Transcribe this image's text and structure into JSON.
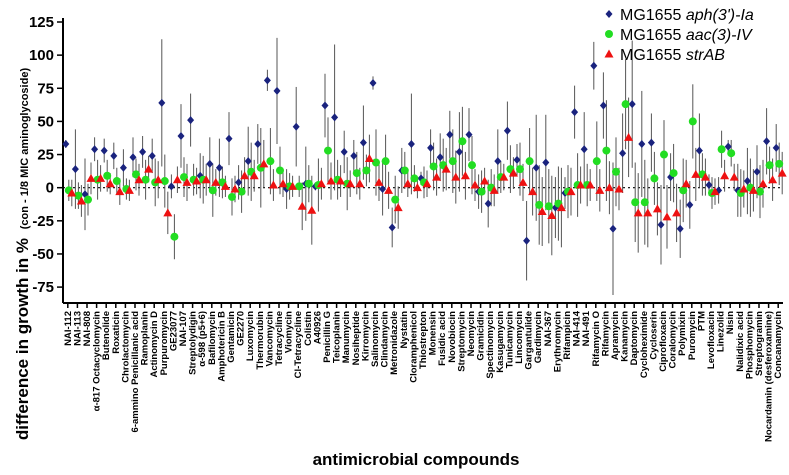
{
  "chart_data": {
    "type": "scatter",
    "xlabel": "antimicrobial compounds",
    "ylabel": "difference in growth in %",
    "ylabel_sub": "(con - 1/8 MIC aminoglycoside)",
    "ylim": [
      -87,
      125
    ],
    "yticks": [
      125,
      100,
      75,
      50,
      25,
      0,
      -25,
      -50,
      -75
    ],
    "zero_line": "dotted",
    "legend_position": "top-right",
    "categories": [
      "NAI-112",
      "NAI-113",
      "NAI-808",
      "α-817 Octacyclomycin",
      "Butenolide",
      "Roxaticin",
      "Chrolactomycin",
      "6-ammino Penicillanic acid",
      "Ramoplanin",
      "Actinomycin D",
      "Purpuromycin",
      "GE23077",
      "NAI-107",
      "Streptolydigin",
      "α-598 (p5+6)",
      "Bafilomycin",
      "Amphotericin B",
      "Gentamicin",
      "GE2270",
      "Luxomycin",
      "Thermorubin",
      "Vancomycin",
      "Tetracycline",
      "Viomycin",
      "Cl-Tetracycline",
      "Colistin",
      "A40926",
      "Penicillin G",
      "Teicoplanin",
      "Manumycin",
      "Nosiheptide",
      "Kirromycin",
      "Salinomycin",
      "Clindamycin",
      "Metronidazole",
      "Nystatin",
      "Cloramphenicol",
      "Thiostrepton",
      "Monensin",
      "Fusidic acid",
      "Novobiocin",
      "Streptomycin",
      "Neomycin",
      "Gramicidin",
      "Spectinomycin",
      "Kasugamycin",
      "Tunicamycin",
      "Lincomycin",
      "Gargantulide",
      "Gardimycin",
      "NAI-367",
      "Erythromycin",
      "Rifampicin",
      "NAI-414",
      "NAI-491",
      "Rifamycin O",
      "Rifamycin",
      "Apramycin",
      "Kanamycin",
      "Daptomycin",
      "Cycloheximide",
      "Cycloserin",
      "Ciprofloxacin",
      "Coralomycin",
      "Polymixin",
      "Puromycin",
      "PTM",
      "Levofloxacin",
      "Linezolid",
      "Nisin",
      "Nalidixic acid",
      "Phosphomycin",
      "Streptogramin",
      "Nocardamin (desferoxamine)",
      "Concanamycin"
    ],
    "series": [
      {
        "name": "MG1655 aph(3')-Ia",
        "label_prefix": "MG1655 ",
        "label_italic": "aph(3')-Ia",
        "color": "#1a237e",
        "marker": "diamond",
        "values": [
          33,
          14,
          -5,
          29,
          28,
          24,
          15,
          23,
          27,
          24,
          64,
          1,
          39,
          51,
          9,
          18,
          15,
          37,
          4,
          20,
          33,
          81,
          73,
          -1,
          46,
          3,
          1,
          62,
          53,
          27,
          24,
          34,
          79,
          -1,
          -30,
          13,
          33,
          7,
          30,
          23,
          40,
          27,
          40,
          -3,
          -12,
          20,
          43,
          21,
          -40,
          15,
          19,
          -15,
          -4,
          57,
          29,
          92,
          62,
          -31,
          26,
          63,
          33,
          34,
          -28,
          8,
          -31,
          -13,
          28,
          2,
          -2,
          31,
          -2,
          5,
          12,
          35,
          30
        ],
        "errors": [
          3,
          30,
          27,
          9,
          9,
          10,
          14,
          15,
          12,
          13,
          48,
          9,
          24,
          20,
          17,
          20,
          22,
          20,
          13,
          26,
          15,
          8,
          40,
          15,
          30,
          28,
          3,
          24,
          55,
          16,
          12,
          28,
          5,
          20,
          15,
          17,
          38,
          5,
          14,
          18,
          18,
          30,
          20,
          13,
          18,
          24,
          22,
          12,
          30,
          40,
          36,
          23,
          12,
          20,
          28,
          18,
          25,
          50,
          30,
          48,
          40,
          22,
          30,
          18,
          22,
          18,
          28,
          8,
          10,
          5,
          20,
          25,
          20,
          25,
          18
        ]
      },
      {
        "name": "MG1655 aac(3)-IV",
        "label_prefix": "MG1655 ",
        "label_italic": "aac(3)-IV",
        "color": "#22dd22",
        "marker": "circle",
        "values": [
          -2,
          -6,
          -9,
          6,
          9,
          5,
          -1,
          10,
          6,
          4,
          5,
          -37,
          8,
          6,
          6,
          -2,
          4,
          -7,
          -3,
          12,
          15,
          20,
          13,
          1,
          1,
          3,
          2,
          28,
          6,
          3,
          11,
          13,
          19,
          20,
          -9,
          13,
          7,
          4,
          16,
          17,
          20,
          35,
          17,
          -3,
          0,
          8,
          14,
          14,
          20,
          -13,
          -14,
          -12,
          -3,
          2,
          2,
          20,
          28,
          12,
          63,
          -11,
          -11,
          7,
          25,
          11,
          -2,
          50,
          10,
          -4,
          29,
          26,
          -4,
          0,
          -3,
          17,
          18
        ],
        "errors": [
          8,
          10,
          12,
          15,
          12,
          10,
          8,
          12,
          15,
          18,
          20,
          17,
          15,
          12,
          18,
          20,
          12,
          14,
          16,
          22,
          30,
          25,
          18,
          10,
          8,
          14,
          20,
          25,
          15,
          20,
          16,
          12,
          25,
          20,
          18,
          14,
          10,
          12,
          18,
          20,
          24,
          26,
          22,
          16,
          14,
          12,
          18,
          20,
          25,
          30,
          28,
          28,
          20,
          24,
          16,
          30,
          38,
          26,
          34,
          30,
          32,
          20,
          26,
          22,
          24,
          28,
          16,
          12,
          14,
          10,
          18,
          22,
          20,
          14,
          16
        ]
      },
      {
        "name": "MG1655 strAB",
        "label_prefix": "MG1655 ",
        "label_italic": "strAB",
        "color": "#ee1111",
        "marker": "triangle",
        "values": [
          -4,
          -10,
          7,
          7,
          3,
          -3,
          -2,
          6,
          14,
          6,
          -19,
          6,
          4,
          5,
          6,
          4,
          1,
          -1,
          9,
          9,
          18,
          2,
          3,
          1,
          -14,
          -17,
          3,
          5,
          5,
          3,
          3,
          22,
          4,
          -2,
          -15,
          3,
          0,
          3,
          8,
          14,
          8,
          9,
          2,
          5,
          -2,
          8,
          11,
          4,
          -3,
          -18,
          -21,
          -15,
          -3,
          2,
          2,
          -2,
          0,
          -1,
          38,
          -19,
          -19,
          -16,
          -22,
          -19,
          3,
          10,
          8,
          -3,
          9,
          8,
          -1,
          -2,
          3,
          6,
          11
        ],
        "errors": [
          10,
          12,
          12,
          10,
          8,
          10,
          8,
          12,
          10,
          14,
          16,
          10,
          14,
          10,
          12,
          10,
          8,
          10,
          14,
          12,
          18,
          12,
          10,
          8,
          18,
          26,
          12,
          14,
          12,
          10,
          12,
          18,
          14,
          14,
          16,
          10,
          8,
          10,
          14,
          16,
          20,
          18,
          12,
          10,
          12,
          10,
          12,
          14,
          18,
          26,
          30,
          30,
          18,
          14,
          12,
          16,
          20,
          16,
          30,
          30,
          26,
          20,
          24,
          22,
          18,
          20,
          14,
          10,
          12,
          10,
          14,
          16,
          18,
          16,
          16
        ]
      }
    ]
  }
}
